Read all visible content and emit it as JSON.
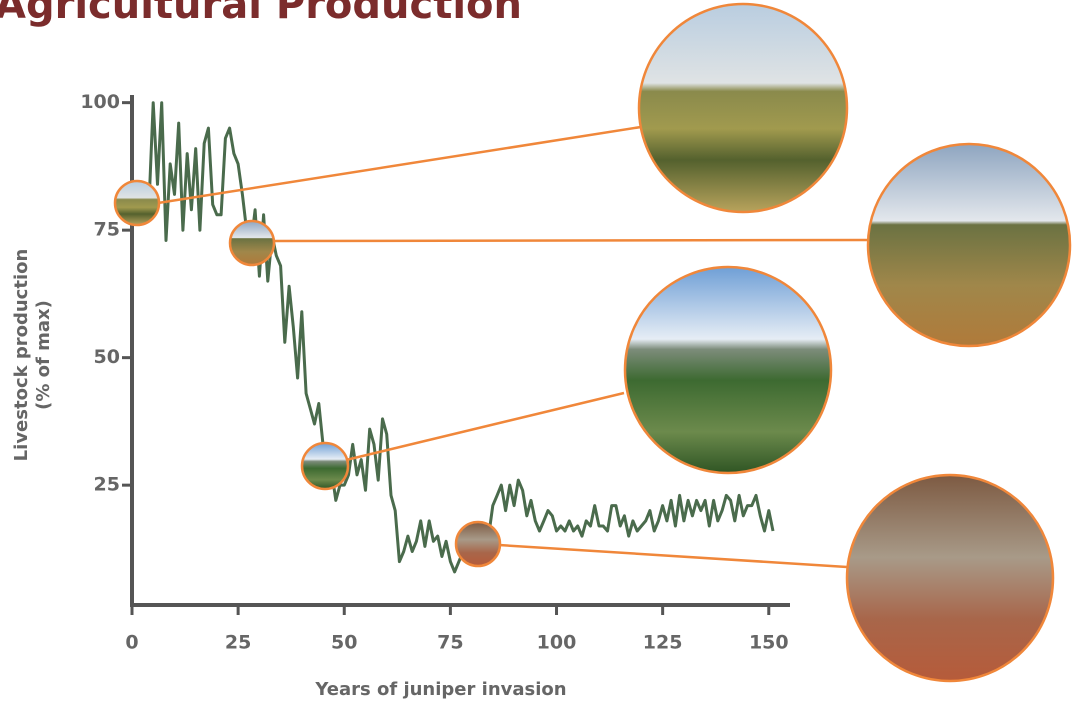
{
  "chart_data": {
    "type": "line",
    "title": "Agricultural Production",
    "xlabel": "Years of juniper invasion",
    "ylabel": [
      "Livestock production",
      "(% of max)"
    ],
    "xlim": [
      0,
      155
    ],
    "ylim": [
      1.5,
      101.5
    ],
    "xticks": [
      0,
      25,
      50,
      75,
      100,
      125,
      150
    ],
    "yticks": [
      25,
      50,
      75,
      100
    ],
    "grid": false,
    "series": [
      {
        "color": "#4a6b4c",
        "x": [
          4,
          5,
          6,
          7,
          8,
          9,
          10,
          11,
          12,
          13,
          14,
          15,
          16,
          17,
          18,
          19,
          20,
          21,
          22,
          23,
          24,
          25,
          26,
          27,
          28,
          29,
          30,
          31,
          32,
          33,
          34,
          35,
          36,
          37,
          38,
          39,
          40,
          41,
          42,
          43,
          44,
          45,
          46,
          47,
          48,
          49,
          50,
          51,
          52,
          53,
          54,
          55,
          56,
          57,
          58,
          59,
          60,
          61,
          62,
          63,
          64,
          65,
          66,
          67,
          68,
          69,
          70,
          71,
          72,
          73,
          74,
          75,
          76,
          77,
          78,
          79,
          80,
          81,
          82,
          83,
          84,
          85,
          86,
          87,
          88,
          89,
          90,
          91,
          92,
          93,
          94,
          95,
          96,
          97,
          98,
          99,
          100,
          101,
          102,
          103,
          104,
          105,
          106,
          107,
          108,
          109,
          110,
          111,
          112,
          113,
          114,
          115,
          116,
          117,
          118,
          119,
          120,
          121,
          122,
          123,
          124,
          125,
          126,
          127,
          128,
          129,
          130,
          131,
          132,
          133,
          134,
          135,
          136,
          137,
          138,
          139,
          140,
          141,
          142,
          143,
          144,
          145,
          146,
          147,
          148,
          149,
          150,
          151
        ],
        "values": [
          80,
          100,
          84,
          100,
          73,
          88,
          82,
          96,
          75,
          90,
          79,
          91,
          75,
          92,
          95,
          80,
          78,
          78,
          93,
          95,
          90,
          88,
          82,
          75,
          72,
          79,
          66,
          78,
          65,
          74,
          70,
          68,
          53,
          64,
          56,
          46,
          59,
          43,
          40,
          37,
          41,
          33,
          30,
          28,
          22,
          25,
          25,
          27,
          33,
          27,
          30,
          24,
          36,
          33,
          26,
          38,
          35,
          23,
          20,
          10,
          12,
          15,
          12,
          14,
          18,
          13,
          18,
          14,
          15,
          11,
          14,
          10,
          8,
          10,
          12,
          10,
          13,
          12,
          14,
          11,
          15,
          21,
          23,
          25,
          20,
          25,
          21,
          26,
          24,
          19,
          22,
          18,
          16,
          18,
          20,
          19,
          16,
          17,
          16,
          18,
          16,
          17,
          15,
          18,
          17,
          21,
          17,
          17,
          16,
          21,
          21,
          17,
          19,
          15,
          18,
          16,
          17,
          18,
          20,
          16,
          18,
          21,
          18,
          22,
          17,
          23,
          18,
          22,
          19,
          22,
          20,
          22,
          17,
          22,
          18,
          20,
          23,
          22,
          18,
          23,
          19,
          21,
          21,
          23,
          19,
          16,
          20,
          16
        ]
      }
    ]
  }
}
